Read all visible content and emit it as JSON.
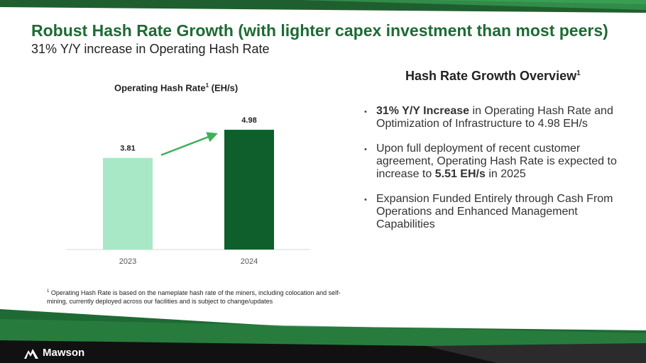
{
  "header": {
    "title": "Robust Hash Rate Growth (with lighter capex investment than most peers)",
    "subtitle": "31% Y/Y increase in Operating Hash Rate"
  },
  "chart_data": {
    "type": "bar",
    "title": "Operating Hash Rate",
    "title_superscript": "1",
    "title_units": "(EH/s)",
    "categories": [
      "2023",
      "2024"
    ],
    "values": [
      3.81,
      4.98
    ],
    "value_labels": [
      "3.81",
      "4.98"
    ],
    "xlabel": "",
    "ylabel": "",
    "ylim": [
      0,
      5.6
    ],
    "grid": false,
    "bar_colors": [
      "#a8e8c6",
      "#0f5f2c"
    ],
    "annotation": "upward-trend-arrow"
  },
  "overview": {
    "title": "Hash Rate Growth Overview",
    "title_superscript": "1",
    "bullets": [
      {
        "bold": "31% Y/Y Increase",
        "text": " in Operating Hash Rate and Optimization of Infrastructure to 4.98 EH/s"
      },
      {
        "pre": "Upon full deployment of recent customer agreement, Operating Hash Rate is expected to increase to ",
        "bold": "5.51 EH/s",
        "post": " in 2025"
      },
      {
        "text": "Expansion Funded Entirely through Cash From Operations and Enhanced Management Capabilities"
      }
    ]
  },
  "footnote": {
    "marker": "1",
    "text": " Operating Hash Rate is based on the nameplate hash rate of the miners, including colocation and self-mining, currently deployed across our facilities and is subject to change/updates"
  },
  "footer": {
    "logo_text": "Mawson"
  },
  "colors": {
    "brand_green": "#1d6b33",
    "dark_green": "#0f5f2c",
    "light_green": "#a8e8c6",
    "arrow_green": "#3cb05a"
  }
}
